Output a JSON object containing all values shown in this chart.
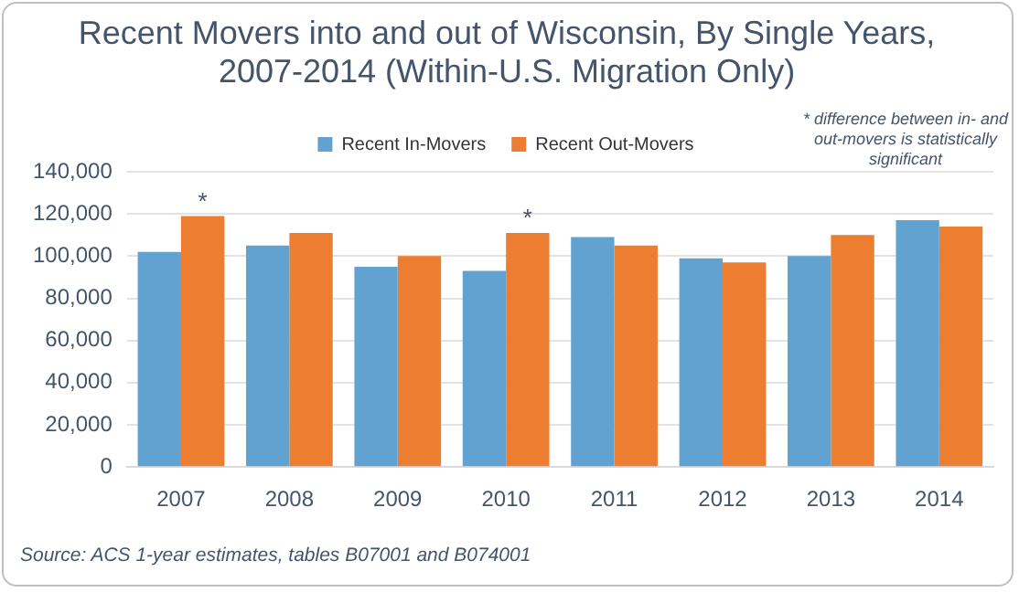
{
  "chart_data": {
    "type": "bar",
    "title": "Recent Movers into and out of Wisconsin, By Single Years, 2007-2014 (Within-U.S. Migration Only)",
    "categories": [
      "2007",
      "2008",
      "2009",
      "2010",
      "2011",
      "2012",
      "2013",
      "2014"
    ],
    "series": [
      {
        "name": "Recent In-Movers",
        "color": "#62a2d0",
        "values": [
          102000,
          105000,
          95000,
          93000,
          109000,
          99000,
          100000,
          117000
        ]
      },
      {
        "name": "Recent Out-Movers",
        "color": "#ed7d31",
        "values": [
          119000,
          111000,
          100000,
          111000,
          105000,
          97000,
          110000,
          114000
        ]
      }
    ],
    "ylim": [
      0,
      140000
    ],
    "yticks": [
      0,
      {
        "value": 20000,
        "label": "20,000"
      },
      {
        "value": 40000,
        "label": "40,000"
      },
      {
        "value": 60000,
        "label": "60,000"
      },
      {
        "value": 80000,
        "label": "80,000"
      },
      {
        "value": 100000,
        "label": "100,000"
      },
      {
        "value": 120000,
        "label": "120,000"
      },
      {
        "value": 140000,
        "label": "140,000"
      }
    ],
    "grid": "y",
    "legend": "top",
    "annotations": [
      {
        "text": "*",
        "x": "2007",
        "y": 119000
      },
      {
        "text": "*",
        "x": "2010",
        "y": 111000
      },
      "* difference between in- and out-movers is statistically significant",
      "Source: ACS 1-year estimates, tables B07001 and B074001"
    ]
  }
}
